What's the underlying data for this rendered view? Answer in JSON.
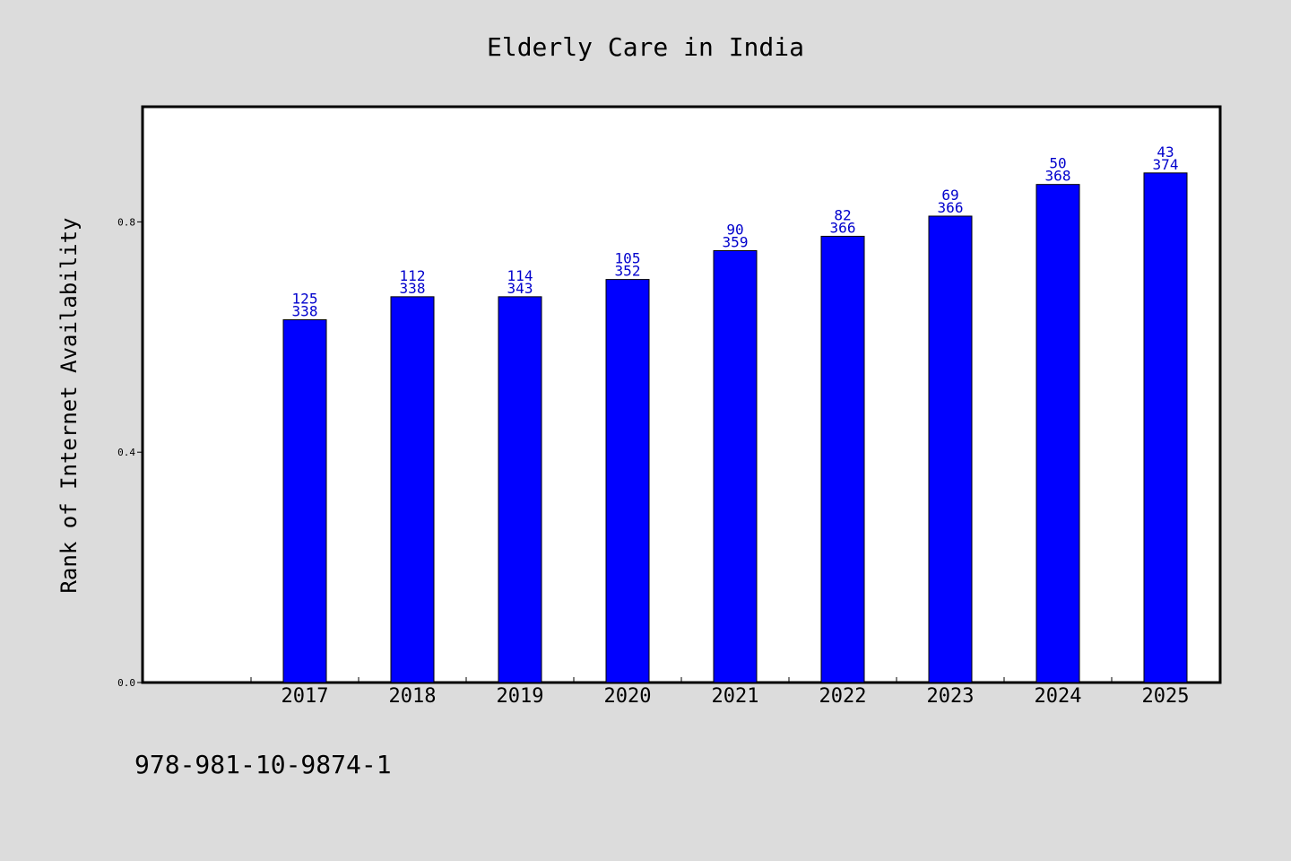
{
  "chart_data": {
    "type": "bar",
    "title": "Elderly Care in India",
    "xlabel": "",
    "ylabel": "Rank of Internet Availability",
    "categories": [
      "2017",
      "2018",
      "2019",
      "2020",
      "2021",
      "2022",
      "2023",
      "2024",
      "2025"
    ],
    "values": [
      0.63,
      0.67,
      0.67,
      0.7,
      0.75,
      0.775,
      0.81,
      0.865,
      0.885
    ],
    "bar_labels": [
      [
        "125",
        "338"
      ],
      [
        "112",
        "338"
      ],
      [
        "114",
        "343"
      ],
      [
        "105",
        "352"
      ],
      [
        "90",
        "359"
      ],
      [
        "82",
        "366"
      ],
      [
        "69",
        "366"
      ],
      [
        "50",
        "368"
      ],
      [
        "43",
        "374"
      ]
    ],
    "yticks": [
      "0.0",
      "0.4",
      "0.8"
    ],
    "ytick_values": [
      0.0,
      0.4,
      0.8
    ],
    "ylim": [
      0,
      1.0
    ],
    "grid": false,
    "colors": {
      "bar": "#0000ff",
      "bar_edge": "#000000",
      "bar_label": "#0000cc",
      "background": "#dcdcdc",
      "plot_background": "#ffffff"
    }
  },
  "footer": {
    "isbn": "978-981-10-9874-1"
  }
}
